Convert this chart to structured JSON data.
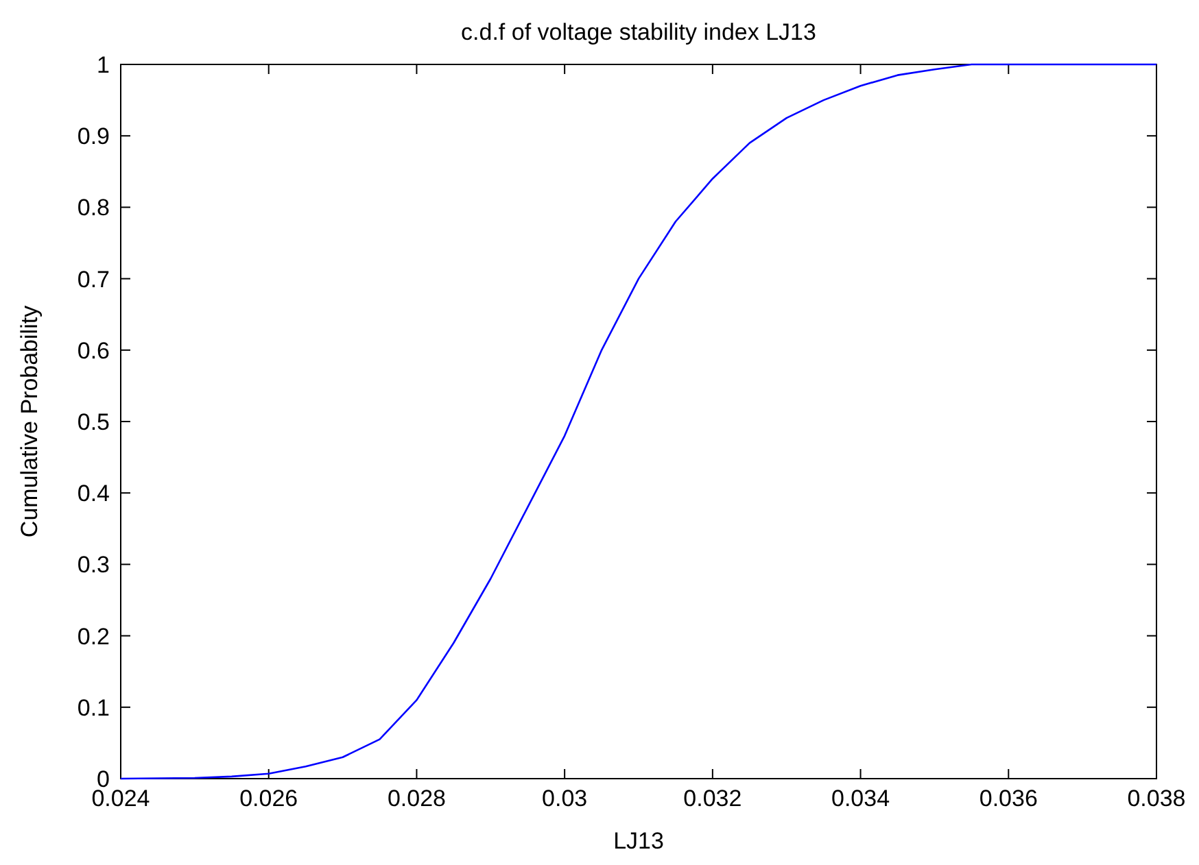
{
  "chart_data": {
    "type": "line",
    "title": "c.d.f of voltage stability index LJ13",
    "xlabel": "LJ13",
    "ylabel": "Cumulative Probability",
    "xlim": [
      0.024,
      0.038
    ],
    "xticks": [
      0.024,
      0.026,
      0.028,
      0.03,
      0.032,
      0.034,
      0.036,
      0.038
    ],
    "ylim": [
      0,
      1
    ],
    "yticks": [
      0,
      0.1,
      0.2,
      0.3,
      0.4,
      0.5,
      0.6,
      0.7,
      0.8,
      0.9,
      1
    ],
    "grid": false,
    "series": [
      {
        "color": "#0000ff",
        "x": [
          0.024,
          0.025,
          0.0255,
          0.026,
          0.0265,
          0.027,
          0.0275,
          0.028,
          0.0285,
          0.029,
          0.0295,
          0.03,
          0.0305,
          0.031,
          0.0315,
          0.032,
          0.0325,
          0.033,
          0.0335,
          0.034,
          0.0345,
          0.035,
          0.0355,
          0.036,
          0.037,
          0.038
        ],
        "values": [
          0,
          0.001,
          0.003,
          0.007,
          0.017,
          0.03,
          0.055,
          0.11,
          0.19,
          0.28,
          0.38,
          0.48,
          0.6,
          0.7,
          0.78,
          0.84,
          0.89,
          0.925,
          0.95,
          0.97,
          0.985,
          0.993,
          1,
          1,
          1,
          1
        ]
      }
    ]
  }
}
